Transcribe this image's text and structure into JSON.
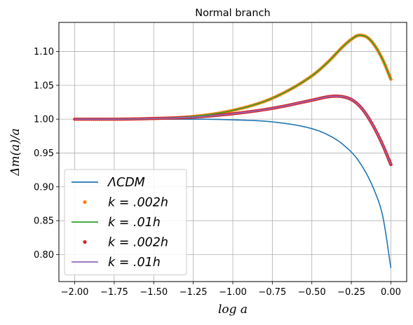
{
  "chart_data": {
    "type": "line",
    "title": "Normal branch",
    "xlabel": "log a",
    "ylabel": "Δm(a)/a",
    "xlim": [
      -2.1,
      0.1
    ],
    "ylim": [
      0.76,
      1.143
    ],
    "x_ticks": [
      -2.0,
      -1.75,
      -1.5,
      -1.25,
      -1.0,
      -0.75,
      -0.5,
      -0.25,
      0.0
    ],
    "x_tick_labels": [
      "−2.00",
      "−1.75",
      "−1.50",
      "−1.25",
      "−1.00",
      "−0.75",
      "−0.50",
      "−0.25",
      "0.00"
    ],
    "y_ticks": [
      0.8,
      0.85,
      0.9,
      0.95,
      1.0,
      1.05,
      1.1
    ],
    "y_tick_labels": [
      "0.80",
      "0.85",
      "0.90",
      "0.95",
      "1.00",
      "1.05",
      "1.10"
    ],
    "grid": true,
    "legend_position": "lower-left",
    "series": [
      {
        "name": "ΛCDM",
        "style": "line",
        "color": "#1f77b4",
        "x": [
          -2.0,
          -1.5,
          -1.25,
          -1.0,
          -0.75,
          -0.5,
          -0.4,
          -0.3,
          -0.2,
          -0.1,
          -0.05,
          0.0
        ],
        "y": [
          1.0,
          1.0,
          1.0,
          0.999,
          0.996,
          0.986,
          0.977,
          0.962,
          0.937,
          0.892,
          0.855,
          0.78
        ]
      },
      {
        "name": "k = .002h",
        "style": "dots",
        "color": "#ff7f0e",
        "x": [
          -2.0,
          -1.75,
          -1.5,
          -1.25,
          -1.0,
          -0.75,
          -0.5,
          -0.4,
          -0.3,
          -0.25,
          -0.2,
          -0.15,
          -0.1,
          -0.05,
          0.0
        ],
        "y": [
          1.0,
          1.0,
          1.001,
          1.004,
          1.013,
          1.031,
          1.064,
          1.084,
          1.108,
          1.118,
          1.124,
          1.121,
          1.108,
          1.087,
          1.059
        ]
      },
      {
        "name": "k = .01h",
        "style": "line",
        "color": "#2ca02c",
        "x": [
          -2.0,
          -1.75,
          -1.5,
          -1.25,
          -1.0,
          -0.75,
          -0.5,
          -0.4,
          -0.3,
          -0.25,
          -0.2,
          -0.15,
          -0.1,
          -0.05,
          0.0
        ],
        "y": [
          1.0,
          1.0,
          1.001,
          1.004,
          1.013,
          1.031,
          1.064,
          1.084,
          1.108,
          1.118,
          1.124,
          1.121,
          1.108,
          1.087,
          1.059
        ]
      },
      {
        "name": "k = .002h",
        "style": "dots",
        "color": "#d62728",
        "x": [
          -2.0,
          -1.75,
          -1.5,
          -1.25,
          -1.0,
          -0.75,
          -0.5,
          -0.4,
          -0.35,
          -0.3,
          -0.25,
          -0.2,
          -0.15,
          -0.1,
          -0.05,
          0.0
        ],
        "y": [
          1.0,
          1.0,
          1.001,
          1.003,
          1.008,
          1.016,
          1.028,
          1.033,
          1.034,
          1.033,
          1.029,
          1.02,
          1.005,
          0.985,
          0.961,
          0.933
        ]
      },
      {
        "name": "k = .01h",
        "style": "line",
        "color": "#9467bd",
        "x": [
          -2.0,
          -1.75,
          -1.5,
          -1.25,
          -1.0,
          -0.75,
          -0.5,
          -0.4,
          -0.35,
          -0.3,
          -0.25,
          -0.2,
          -0.15,
          -0.1,
          -0.05,
          0.0
        ],
        "y": [
          1.0,
          1.0,
          1.001,
          1.003,
          1.008,
          1.016,
          1.028,
          1.033,
          1.034,
          1.033,
          1.029,
          1.02,
          1.005,
          0.985,
          0.961,
          0.933
        ]
      }
    ],
    "legend": [
      {
        "label": "ΛCDM",
        "color": "#1f77b4",
        "marker": "line"
      },
      {
        "label": "k = .002h",
        "color": "#ff7f0e",
        "marker": "dot"
      },
      {
        "label": "k = .01h",
        "color": "#2ca02c",
        "marker": "line"
      },
      {
        "label": "k = .002h",
        "color": "#d62728",
        "marker": "dot"
      },
      {
        "label": "k = .01h",
        "color": "#9467bd",
        "marker": "line"
      }
    ]
  }
}
